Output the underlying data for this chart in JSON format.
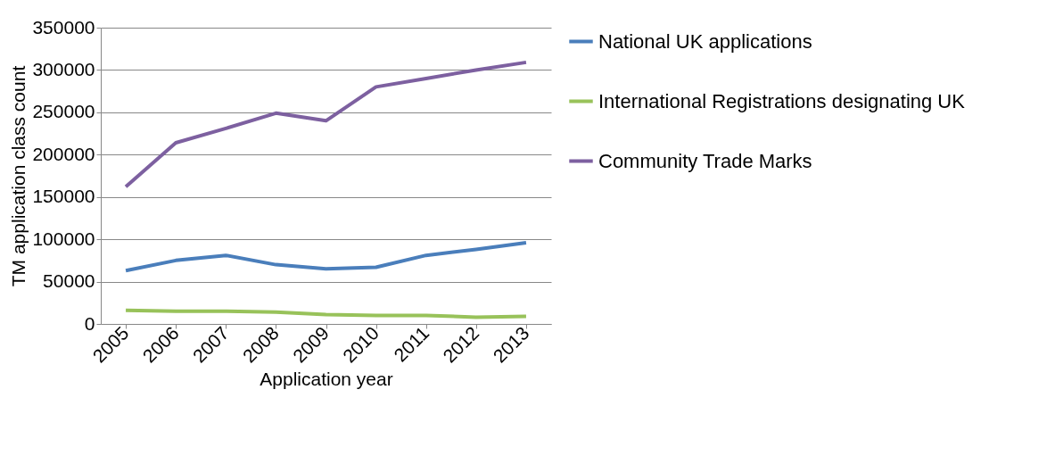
{
  "chart_data": {
    "type": "line",
    "xlabel": "Application year",
    "ylabel": "TM application class count",
    "categories": [
      "2005",
      "2006",
      "2007",
      "2008",
      "2009",
      "2010",
      "2011",
      "2012",
      "2013"
    ],
    "series": [
      {
        "name": "National UK applications",
        "color": "#4a7ebb",
        "values": [
          63000,
          75000,
          81000,
          70000,
          65000,
          67000,
          81000,
          88000,
          96000
        ]
      },
      {
        "name": "International Registrations designating UK",
        "color": "#98c25a",
        "values": [
          16000,
          15000,
          15000,
          14000,
          11000,
          10000,
          10000,
          8000,
          9000
        ]
      },
      {
        "name": "Community Trade Marks",
        "color": "#7d60a0",
        "values": [
          162000,
          214000,
          231000,
          249000,
          240000,
          280000,
          290000,
          300000,
          309000
        ]
      }
    ],
    "ylim": [
      0,
      350000
    ],
    "yticks": [
      0,
      50000,
      100000,
      150000,
      200000,
      250000,
      300000,
      350000
    ],
    "grid": "y",
    "legend": "right",
    "marker": "none",
    "line_style": "solid"
  }
}
